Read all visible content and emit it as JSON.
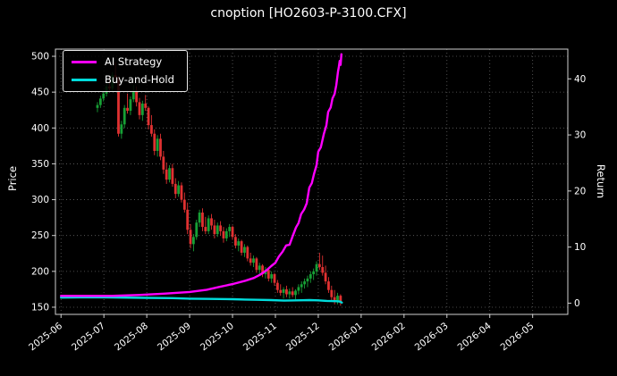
{
  "chart_data": {
    "type": "candlestick",
    "title": "cnoption [HO2603-P-3100.CFX]",
    "background": "#000000",
    "text_color": "#ffffff",
    "grid": {
      "on": true,
      "color": "#6e6e6e",
      "style": "dotted"
    },
    "spine_color": "#cfcfcf",
    "x_axis": {
      "unit": "month",
      "range": [
        -0.13,
        11.82
      ],
      "tick_positions": [
        0,
        1,
        2,
        3,
        4,
        5,
        6,
        7,
        8,
        9,
        10,
        11
      ],
      "tick_labels": [
        "2025-06",
        "2025-07",
        "2025-08",
        "2025-09",
        "2025-10",
        "2025-11",
        "2025-12",
        "2026-01",
        "2026-02",
        "2026-03",
        "2026-04",
        "2026-05"
      ]
    },
    "left_axis": {
      "label": "Price",
      "range": [
        140,
        510
      ],
      "ticks": [
        150,
        200,
        250,
        300,
        350,
        400,
        450,
        500
      ]
    },
    "right_axis": {
      "label": "Return",
      "range": [
        -2,
        45.3
      ],
      "ticks": [
        0,
        10,
        20,
        30,
        40
      ]
    },
    "candle_colors": {
      "up": "#17a035",
      "down": "#e03131"
    },
    "candles": [
      [
        0.85,
        428,
        436,
        422,
        432
      ],
      [
        0.92,
        432,
        445,
        428,
        441
      ],
      [
        0.99,
        441,
        452,
        437,
        448
      ],
      [
        1.06,
        448,
        462,
        444,
        458
      ],
      [
        1.13,
        458,
        472,
        452,
        455
      ],
      [
        1.2,
        455,
        478,
        451,
        474
      ],
      [
        1.27,
        474,
        492,
        466,
        470
      ],
      [
        1.34,
        470,
        472,
        388,
        392
      ],
      [
        1.41,
        392,
        410,
        385,
        405
      ],
      [
        1.48,
        405,
        432,
        400,
        428
      ],
      [
        1.55,
        428,
        448,
        420,
        424
      ],
      [
        1.62,
        424,
        444,
        418,
        440
      ],
      [
        1.69,
        440,
        460,
        436,
        452
      ],
      [
        1.76,
        452,
        458,
        430,
        436
      ],
      [
        1.83,
        436,
        442,
        412,
        418
      ],
      [
        1.9,
        418,
        438,
        410,
        434
      ],
      [
        1.97,
        434,
        446,
        424,
        428
      ],
      [
        2.04,
        428,
        430,
        398,
        404
      ],
      [
        2.11,
        404,
        418,
        388,
        392
      ],
      [
        2.18,
        392,
        398,
        362,
        368
      ],
      [
        2.25,
        368,
        390,
        360,
        385
      ],
      [
        2.32,
        385,
        392,
        355,
        360
      ],
      [
        2.39,
        360,
        368,
        336,
        342
      ],
      [
        2.46,
        342,
        352,
        322,
        328
      ],
      [
        2.53,
        328,
        348,
        324,
        344
      ],
      [
        2.6,
        344,
        350,
        318,
        322
      ],
      [
        2.67,
        322,
        330,
        302,
        308
      ],
      [
        2.74,
        308,
        326,
        304,
        320
      ],
      [
        2.81,
        320,
        324,
        296,
        300
      ],
      [
        2.88,
        300,
        310,
        282,
        286
      ],
      [
        2.95,
        286,
        296,
        252,
        258
      ],
      [
        3.02,
        258,
        266,
        232,
        238
      ],
      [
        3.09,
        238,
        252,
        228,
        248
      ],
      [
        3.16,
        248,
        272,
        244,
        268
      ],
      [
        3.23,
        268,
        286,
        262,
        282
      ],
      [
        3.3,
        282,
        288,
        256,
        262
      ],
      [
        3.37,
        262,
        276,
        252,
        256
      ],
      [
        3.44,
        256,
        278,
        252,
        274
      ],
      [
        3.51,
        274,
        280,
        258,
        264
      ],
      [
        3.58,
        264,
        272,
        246,
        252
      ],
      [
        3.65,
        252,
        268,
        248,
        264
      ],
      [
        3.72,
        264,
        270,
        250,
        256
      ],
      [
        3.79,
        256,
        262,
        240,
        246
      ],
      [
        3.86,
        246,
        260,
        242,
        256
      ],
      [
        3.93,
        256,
        266,
        248,
        262
      ],
      [
        4.0,
        262,
        264,
        244,
        248
      ],
      [
        4.07,
        248,
        252,
        232,
        236
      ],
      [
        4.14,
        236,
        246,
        228,
        242
      ],
      [
        4.21,
        242,
        244,
        222,
        226
      ],
      [
        4.28,
        226,
        238,
        220,
        234
      ],
      [
        4.35,
        234,
        236,
        214,
        218
      ],
      [
        4.42,
        218,
        226,
        208,
        212
      ],
      [
        4.49,
        212,
        222,
        206,
        218
      ],
      [
        4.56,
        218,
        220,
        198,
        202
      ],
      [
        4.63,
        202,
        212,
        196,
        208
      ],
      [
        4.7,
        208,
        210,
        192,
        196
      ],
      [
        4.77,
        196,
        206,
        190,
        202
      ],
      [
        4.84,
        202,
        204,
        186,
        190
      ],
      [
        4.91,
        190,
        200,
        184,
        196
      ],
      [
        4.98,
        196,
        198,
        180,
        184
      ],
      [
        5.05,
        184,
        188,
        170,
        174
      ],
      [
        5.12,
        174,
        182,
        166,
        170
      ],
      [
        5.19,
        170,
        178,
        162,
        175
      ],
      [
        5.26,
        175,
        180,
        164,
        168
      ],
      [
        5.33,
        168,
        176,
        162,
        172
      ],
      [
        5.4,
        172,
        178,
        164,
        167
      ],
      [
        5.47,
        167,
        175,
        161,
        173
      ],
      [
        5.54,
        173,
        182,
        168,
        178
      ],
      [
        5.61,
        178,
        186,
        170,
        182
      ],
      [
        5.68,
        182,
        190,
        176,
        186
      ],
      [
        5.75,
        186,
        194,
        178,
        190
      ],
      [
        5.82,
        190,
        200,
        184,
        196
      ],
      [
        5.89,
        196,
        204,
        188,
        200
      ],
      [
        5.96,
        200,
        214,
        194,
        210
      ],
      [
        6.03,
        210,
        226,
        202,
        206
      ],
      [
        6.1,
        206,
        222,
        194,
        198
      ],
      [
        6.17,
        198,
        208,
        182,
        186
      ],
      [
        6.24,
        186,
        192,
        170,
        174
      ],
      [
        6.31,
        174,
        180,
        160,
        164
      ],
      [
        6.38,
        164,
        174,
        154,
        158
      ],
      [
        6.45,
        158,
        170,
        154,
        166
      ],
      [
        6.52,
        166,
        168,
        152,
        156
      ]
    ],
    "series": [
      {
        "name": "AI Strategy",
        "axis": "right",
        "color": "#ff00ff",
        "points": [
          [
            0,
            1.3
          ],
          [
            0.6,
            1.3
          ],
          [
            1.2,
            1.3
          ],
          [
            1.8,
            1.45
          ],
          [
            2.4,
            1.7
          ],
          [
            3.0,
            2.0
          ],
          [
            3.4,
            2.4
          ],
          [
            3.7,
            2.9
          ],
          [
            4.0,
            3.4
          ],
          [
            4.3,
            4.0
          ],
          [
            4.5,
            4.5
          ],
          [
            4.65,
            5.1
          ],
          [
            4.8,
            5.9
          ],
          [
            4.9,
            6.6
          ],
          [
            5.0,
            7.2
          ],
          [
            5.08,
            8.3
          ],
          [
            5.17,
            9.2
          ],
          [
            5.25,
            10.3
          ],
          [
            5.33,
            10.4
          ],
          [
            5.4,
            11.9
          ],
          [
            5.48,
            13.5
          ],
          [
            5.54,
            14.3
          ],
          [
            5.6,
            15.9
          ],
          [
            5.67,
            16.7
          ],
          [
            5.73,
            17.8
          ],
          [
            5.79,
            20.6
          ],
          [
            5.85,
            21.4
          ],
          [
            5.9,
            23.0
          ],
          [
            5.96,
            24.6
          ],
          [
            6.0,
            27.0
          ],
          [
            6.06,
            27.8
          ],
          [
            6.13,
            30.2
          ],
          [
            6.19,
            31.7
          ],
          [
            6.23,
            34.1
          ],
          [
            6.29,
            34.9
          ],
          [
            6.33,
            36.5
          ],
          [
            6.38,
            37.3
          ],
          [
            6.42,
            38.9
          ],
          [
            6.46,
            41.3
          ],
          [
            6.48,
            42.1
          ],
          [
            6.5,
            43.2
          ],
          [
            6.52,
            42.5
          ],
          [
            6.54,
            44.4
          ]
        ]
      },
      {
        "name": "Buy-and-Hold",
        "axis": "right",
        "color": "#00dcdc",
        "points": [
          [
            0,
            1.0
          ],
          [
            0.7,
            1.05
          ],
          [
            1.4,
            1.0
          ],
          [
            2.0,
            0.95
          ],
          [
            2.6,
            0.9
          ],
          [
            3.0,
            0.8
          ],
          [
            3.5,
            0.75
          ],
          [
            4.0,
            0.7
          ],
          [
            4.3,
            0.65
          ],
          [
            4.6,
            0.6
          ],
          [
            4.9,
            0.55
          ],
          [
            5.2,
            0.45
          ],
          [
            5.5,
            0.5
          ],
          [
            5.8,
            0.55
          ],
          [
            6.0,
            0.5
          ],
          [
            6.2,
            0.4
          ],
          [
            6.4,
            0.35
          ],
          [
            6.5,
            0.3
          ],
          [
            6.55,
            0.1
          ]
        ]
      }
    ],
    "legend_position": "upper-left"
  }
}
